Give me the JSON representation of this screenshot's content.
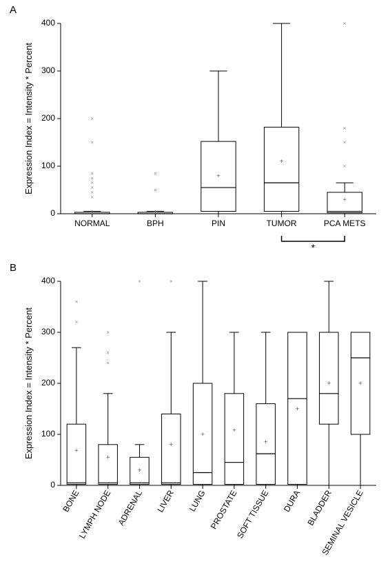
{
  "panelA": {
    "label": "A",
    "type": "boxplot",
    "ylabel": "Expression Index = Intensity * Percent",
    "ylim": [
      0,
      400
    ],
    "ytick_step": 100,
    "background_color": "#ffffff",
    "axis_color": "#000000",
    "box_color": "#000000",
    "outlier_color": "#999999",
    "mean_marker_color": "#666666",
    "label_fontsize": 12,
    "ylabel_fontsize": 13,
    "categories": [
      "NORMAL",
      "BPH",
      "PIN",
      "TUMOR",
      "PCA METS"
    ],
    "boxes": [
      {
        "min": 0,
        "q1": 0,
        "median": 0,
        "q3": 3,
        "max": 5,
        "mean": 3,
        "outliers": [
          35,
          45,
          55,
          65,
          75,
          85,
          150,
          200
        ]
      },
      {
        "min": 0,
        "q1": 0,
        "median": 0,
        "q3": 3,
        "max": 5,
        "mean": 3,
        "outliers": [
          50,
          85
        ]
      },
      {
        "min": 0,
        "q1": 5,
        "median": 55,
        "q3": 152,
        "max": 300,
        "mean": 80,
        "outliers": []
      },
      {
        "min": 0,
        "q1": 5,
        "median": 65,
        "q3": 182,
        "max": 400,
        "mean": 110,
        "outliers": []
      },
      {
        "min": 0,
        "q1": 2,
        "median": 5,
        "q3": 45,
        "max": 65,
        "mean": 30,
        "outliers": [
          100,
          150,
          180,
          400
        ]
      }
    ],
    "sig_bracket": {
      "from": 3,
      "to": 4,
      "label": "*"
    }
  },
  "panelB": {
    "label": "B",
    "type": "boxplot",
    "ylabel": "Expression Index = Intensity * Percent",
    "ylim": [
      0,
      400
    ],
    "ytick_step": 100,
    "background_color": "#ffffff",
    "axis_color": "#000000",
    "box_color": "#000000",
    "outlier_color": "#999999",
    "mean_marker_color": "#666666",
    "label_fontsize": 12,
    "ylabel_fontsize": 13,
    "categories": [
      "BONE",
      "LYMPH NODE",
      "ADRENAL",
      "LIVER",
      "LUNG",
      "PROSTATE",
      "SOFT TISSUE",
      "DURA",
      "BLADDER",
      "SEMINAL VESICLE"
    ],
    "boxes": [
      {
        "min": 0,
        "q1": 2,
        "median": 5,
        "q3": 120,
        "max": 270,
        "mean": 68,
        "outliers": [
          320,
          360
        ]
      },
      {
        "min": 0,
        "q1": 2,
        "median": 5,
        "q3": 80,
        "max": 180,
        "mean": 55,
        "outliers": [
          240,
          260,
          300
        ]
      },
      {
        "min": 0,
        "q1": 2,
        "median": 5,
        "q3": 55,
        "max": 80,
        "mean": 30,
        "outliers": [
          400
        ]
      },
      {
        "min": 0,
        "q1": 2,
        "median": 5,
        "q3": 140,
        "max": 300,
        "mean": 80,
        "outliers": [
          400
        ]
      },
      {
        "min": 0,
        "q1": 2,
        "median": 25,
        "q3": 200,
        "max": 400,
        "mean": 100,
        "outliers": []
      },
      {
        "min": 0,
        "q1": 2,
        "median": 45,
        "q3": 180,
        "max": 300,
        "mean": 108,
        "outliers": []
      },
      {
        "min": 0,
        "q1": 2,
        "median": 62,
        "q3": 160,
        "max": 300,
        "mean": 85,
        "outliers": []
      },
      {
        "min": 0,
        "q1": 2,
        "median": 170,
        "q3": 300,
        "max": 300,
        "mean": 150,
        "outliers": []
      },
      {
        "min": 0,
        "q1": 120,
        "median": 180,
        "q3": 300,
        "max": 400,
        "mean": 200,
        "outliers": []
      },
      {
        "min": 0,
        "q1": 100,
        "median": 250,
        "q3": 300,
        "max": 300,
        "mean": 200,
        "outliers": []
      }
    ]
  }
}
